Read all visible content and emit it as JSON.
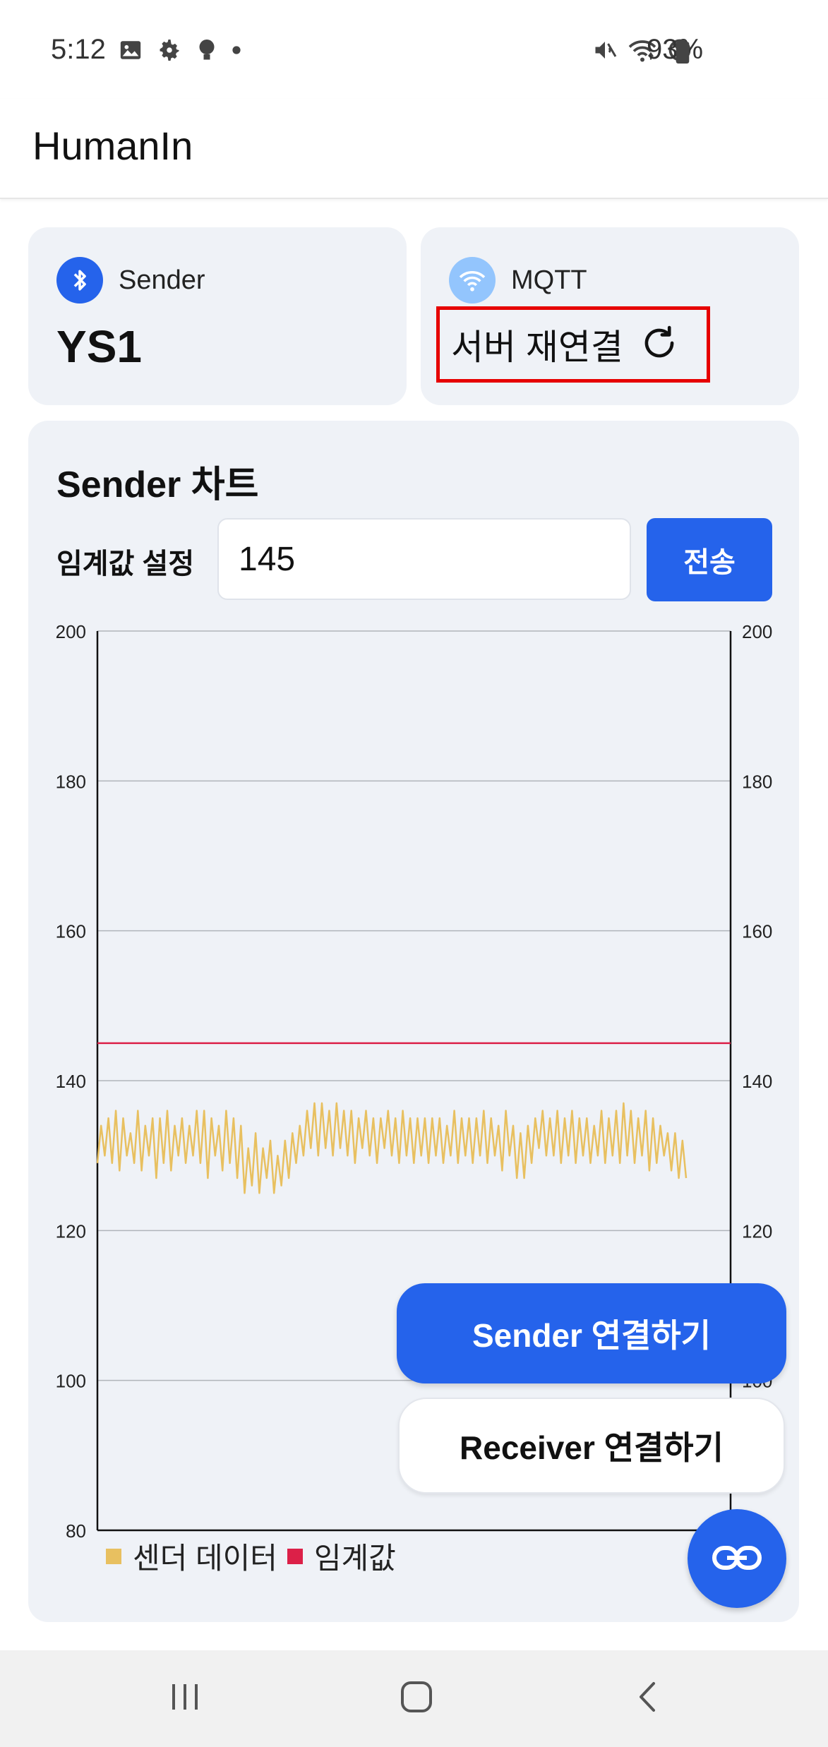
{
  "status_bar": {
    "time": "5:12",
    "battery": "93%",
    "left_icons": [
      "gallery-icon",
      "settings-icon",
      "bulb-icon",
      "dot-icon"
    ],
    "right_icons": [
      "mute-icon",
      "wifi-icon",
      "blocked-icon",
      "battery-icon"
    ]
  },
  "app_bar": {
    "title": "HumanIn"
  },
  "sender_card": {
    "label": "Sender",
    "device_name": "YS1",
    "icon": "bluetooth-icon"
  },
  "mqtt_card": {
    "label": "MQTT",
    "action_label": "서버 재연결",
    "icon": "wifi-icon"
  },
  "chart_card": {
    "title": "Sender 차트",
    "threshold_label": "임계값 설정",
    "threshold_value": "145",
    "send_label": "전송"
  },
  "chart_data": {
    "type": "line",
    "title": "",
    "ylim": [
      80,
      200
    ],
    "yticks": [
      80,
      100,
      120,
      140,
      160,
      180,
      200
    ],
    "grid": true,
    "dual_y_axis": true,
    "legend_position": "bottom-left",
    "series": [
      {
        "name": "센더 데이터",
        "color": "#e8c060",
        "values": [
          129,
          134,
          130,
          135,
          129,
          136,
          128,
          135,
          130,
          133,
          129,
          136,
          128,
          134,
          130,
          135,
          127,
          135,
          129,
          136,
          128,
          134,
          130,
          135,
          129,
          134,
          130,
          136,
          129,
          136,
          127,
          135,
          130,
          134,
          128,
          136,
          129,
          135,
          127,
          134,
          125,
          131,
          126,
          133,
          125,
          131,
          127,
          132,
          125,
          130,
          126,
          132,
          127,
          133,
          129,
          134,
          130,
          136,
          131,
          137,
          130,
          137,
          131,
          136,
          130,
          137,
          131,
          136,
          130,
          136,
          129,
          135,
          131,
          136,
          130,
          135,
          129,
          135,
          131,
          136,
          130,
          135,
          129,
          136,
          130,
          135,
          129,
          135,
          130,
          135,
          129,
          135,
          130,
          135,
          129,
          134,
          130,
          136,
          129,
          135,
          130,
          135,
          129,
          135,
          130,
          136,
          129,
          135,
          130,
          134,
          128,
          136,
          130,
          134,
          127,
          133,
          127,
          134,
          129,
          135,
          131,
          136,
          130,
          135,
          130,
          136,
          129,
          135,
          130,
          136,
          129,
          135,
          130,
          135,
          129,
          134,
          130,
          136,
          129,
          135,
          130,
          136,
          129,
          137,
          130,
          136,
          129,
          135,
          130,
          136,
          128,
          135,
          129,
          134,
          130,
          133,
          128,
          133,
          127,
          132,
          127
        ],
        "legend_label": "센더 데이터"
      },
      {
        "name": "임계값",
        "color": "#dc2048",
        "constant": 145,
        "legend_label": "임계값"
      }
    ]
  },
  "actions": {
    "sender_connect": "Sender 연결하기",
    "receiver_connect": "Receiver 연결하기",
    "link_icon": "link-icon"
  },
  "nav_bar": {
    "buttons": [
      "recent-apps-icon",
      "home-icon",
      "back-icon"
    ]
  },
  "colors": {
    "primary": "#2563eb",
    "card_bg": "#eff2f7",
    "highlight_border": "#e60000",
    "series_line": "#e8c060",
    "threshold_line": "#dc2048"
  }
}
